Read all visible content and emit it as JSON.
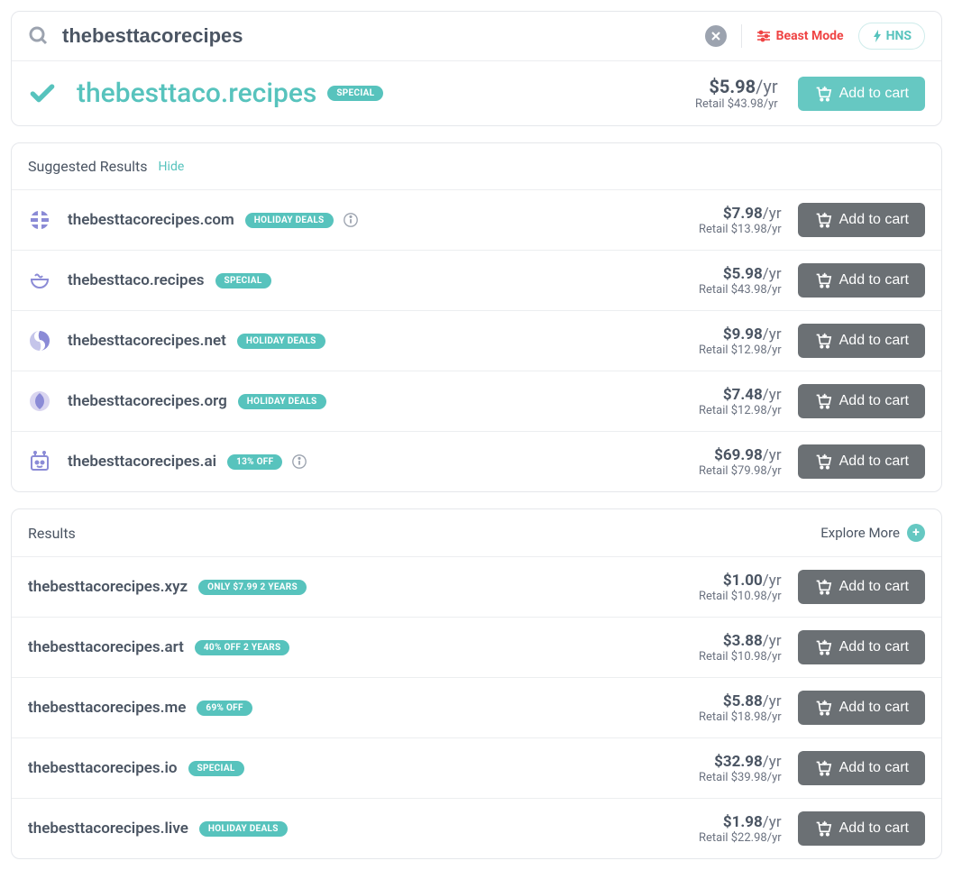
{
  "colors": {
    "teal": "#57c3bd",
    "teal_btn": "#66c8c2",
    "gray_btn": "#6b7074",
    "text": "#4b5563",
    "muted": "#6b7280",
    "danger": "#ef4444",
    "border": "#e5e7eb"
  },
  "search": {
    "value": "thebesttacorecipes",
    "beast_mode_label": "Beast Mode",
    "hns_label": "HNS"
  },
  "featured": {
    "domain": "thebesttaco.recipes",
    "badge": "SPECIAL",
    "price": "$5.98",
    "price_unit": "/yr",
    "retail": "Retail $43.98/yr",
    "button": "Add to cart"
  },
  "suggested": {
    "title": "Suggested Results",
    "hide_label": "Hide",
    "items": [
      {
        "icon": "globe",
        "domain": "thebesttacorecipes.com",
        "badge": "HOLIDAY DEALS",
        "info": true,
        "price": "$7.98",
        "unit": "/yr",
        "retail": "Retail $13.98/yr",
        "button": "Add to cart"
      },
      {
        "icon": "bowl",
        "domain": "thebesttaco.recipes",
        "badge": "SPECIAL",
        "info": false,
        "price": "$5.98",
        "unit": "/yr",
        "retail": "Retail $43.98/yr",
        "button": "Add to cart"
      },
      {
        "icon": "swirl",
        "domain": "thebesttacorecipes.net",
        "badge": "HOLIDAY DEALS",
        "info": false,
        "price": "$9.98",
        "unit": "/yr",
        "retail": "Retail $12.98/yr",
        "button": "Add to cart"
      },
      {
        "icon": "org",
        "domain": "thebesttacorecipes.org",
        "badge": "HOLIDAY DEALS",
        "info": false,
        "price": "$7.48",
        "unit": "/yr",
        "retail": "Retail $12.98/yr",
        "button": "Add to cart"
      },
      {
        "icon": "robot",
        "domain": "thebesttacorecipes.ai",
        "badge": "13% OFF",
        "info": true,
        "price": "$69.98",
        "unit": "/yr",
        "retail": "Retail $79.98/yr",
        "button": "Add to cart"
      }
    ]
  },
  "results": {
    "title": "Results",
    "explore_label": "Explore More",
    "items": [
      {
        "domain": "thebesttacorecipes.xyz",
        "badge": "ONLY $7.99 2 YEARS",
        "price": "$1.00",
        "unit": "/yr",
        "retail": "Retail $10.98/yr",
        "button": "Add to cart"
      },
      {
        "domain": "thebesttacorecipes.art",
        "badge": "40% OFF 2 YEARS",
        "price": "$3.88",
        "unit": "/yr",
        "retail": "Retail $10.98/yr",
        "button": "Add to cart"
      },
      {
        "domain": "thebesttacorecipes.me",
        "badge": "69% OFF",
        "price": "$5.88",
        "unit": "/yr",
        "retail": "Retail $18.98/yr",
        "button": "Add to cart"
      },
      {
        "domain": "thebesttacorecipes.io",
        "badge": "SPECIAL",
        "price": "$32.98",
        "unit": "/yr",
        "retail": "Retail $39.98/yr",
        "button": "Add to cart"
      },
      {
        "domain": "thebesttacorecipes.live",
        "badge": "HOLIDAY DEALS",
        "price": "$1.98",
        "unit": "/yr",
        "retail": "Retail $22.98/yr",
        "button": "Add to cart"
      }
    ]
  }
}
